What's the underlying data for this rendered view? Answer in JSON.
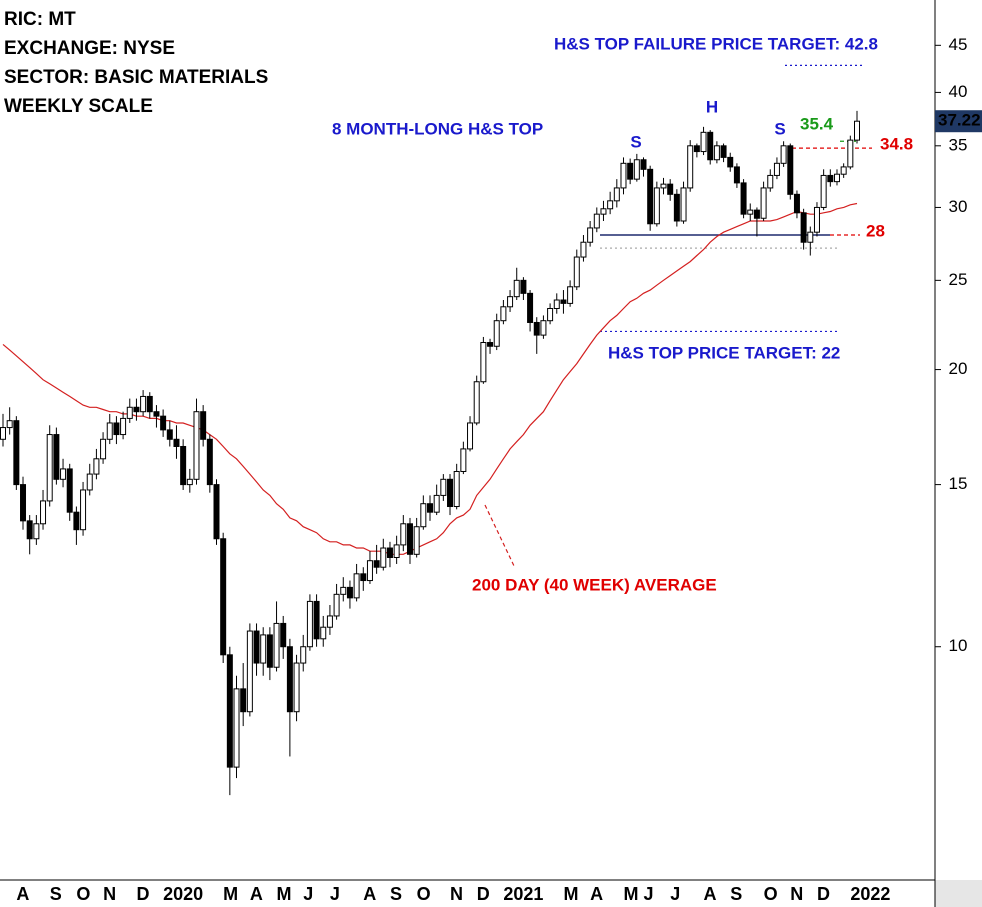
{
  "chart_data": {
    "type": "candlestick",
    "info": [
      "RIC: MT",
      "EXCHANGE: NYSE",
      "SECTOR: BASIC MATERIALS",
      "WEEKLY SCALE"
    ],
    "pattern_title": "8 MONTH-LONG H&S TOP",
    "pattern_labels": [
      "S",
      "H",
      "S"
    ],
    "ma_label": "200 DAY (40 WEEK) AVERAGE",
    "log_scale": true,
    "ylim": [
      5.58,
      50.4
    ],
    "yticks": [
      10,
      15,
      20,
      25,
      30,
      35,
      40,
      45
    ],
    "last_price": 37.22,
    "up_color": "#ffffff",
    "down_color": "#000000",
    "categories": [
      null,
      null,
      "A",
      null,
      null,
      null,
      null,
      "S",
      null,
      null,
      null,
      "O",
      null,
      null,
      null,
      "N",
      null,
      null,
      null,
      null,
      "D",
      null,
      null,
      null,
      "2020",
      null,
      null,
      null,
      null,
      null,
      null,
      null,
      null,
      "M",
      null,
      null,
      null,
      "A",
      null,
      null,
      null,
      "M",
      null,
      null,
      null,
      "J",
      null,
      null,
      null,
      "J",
      null,
      null,
      null,
      null,
      "A",
      null,
      null,
      null,
      "S",
      null,
      null,
      null,
      "O",
      null,
      null,
      null,
      null,
      "N",
      null,
      null,
      null,
      "D",
      null,
      null,
      null,
      "2021",
      null,
      null,
      null,
      null,
      null,
      null,
      null,
      null,
      "M",
      null,
      null,
      null,
      "A",
      null,
      null,
      null,
      null,
      "M",
      null,
      null,
      "J",
      null,
      null,
      null,
      "J",
      null,
      null,
      null,
      null,
      "A",
      null,
      null,
      null,
      "S",
      null,
      null,
      null,
      null,
      "O",
      null,
      null,
      null,
      "N",
      null,
      null,
      null,
      "D",
      null,
      null,
      null,
      null,
      "2022",
      null
    ],
    "ohlc": [
      [
        16.8,
        17.9,
        16.5,
        17.3
      ],
      [
        17.3,
        18.2,
        17.0,
        17.6
      ],
      [
        17.6,
        17.8,
        14.8,
        15.0
      ],
      [
        15.0,
        15.3,
        13.4,
        13.7
      ],
      [
        13.7,
        13.9,
        12.6,
        13.1
      ],
      [
        13.1,
        13.9,
        12.9,
        13.6
      ],
      [
        13.6,
        14.8,
        13.4,
        14.4
      ],
      [
        14.4,
        17.4,
        14.2,
        17.0
      ],
      [
        17.0,
        17.3,
        15.0,
        15.2
      ],
      [
        15.2,
        16.0,
        14.9,
        15.6
      ],
      [
        15.6,
        15.8,
        13.7,
        14.0
      ],
      [
        14.0,
        14.2,
        12.9,
        13.4
      ],
      [
        13.4,
        15.1,
        13.2,
        14.8
      ],
      [
        14.8,
        15.8,
        14.6,
        15.4
      ],
      [
        15.4,
        16.4,
        15.2,
        16.0
      ],
      [
        16.0,
        17.1,
        15.8,
        16.8
      ],
      [
        16.8,
        17.9,
        16.6,
        17.5
      ],
      [
        17.5,
        17.8,
        16.6,
        17.0
      ],
      [
        17.0,
        18.0,
        16.8,
        17.7
      ],
      [
        17.7,
        18.6,
        17.5,
        18.2
      ],
      [
        18.2,
        18.6,
        17.6,
        18.0
      ],
      [
        18.0,
        19.0,
        17.8,
        18.7
      ],
      [
        18.7,
        18.9,
        17.7,
        18.0
      ],
      [
        18.0,
        18.3,
        17.3,
        17.8
      ],
      [
        17.8,
        18.1,
        16.9,
        17.2
      ],
      [
        17.2,
        17.6,
        16.5,
        16.8
      ],
      [
        16.8,
        17.4,
        16.0,
        16.5
      ],
      [
        16.5,
        16.8,
        14.8,
        15.0
      ],
      [
        15.0,
        15.6,
        14.7,
        15.2
      ],
      [
        15.2,
        18.6,
        15.0,
        18.0
      ],
      [
        18.0,
        18.3,
        16.5,
        16.8
      ],
      [
        16.8,
        17.0,
        14.7,
        15.0
      ],
      [
        15.0,
        15.2,
        12.9,
        13.1
      ],
      [
        13.1,
        13.3,
        9.6,
        9.8
      ],
      [
        9.8,
        10.0,
        6.9,
        7.4
      ],
      [
        7.4,
        9.3,
        7.2,
        9.0
      ],
      [
        9.0,
        9.6,
        8.2,
        8.5
      ],
      [
        8.5,
        10.6,
        8.4,
        10.4
      ],
      [
        10.4,
        10.6,
        9.3,
        9.6
      ],
      [
        9.6,
        10.5,
        9.3,
        10.3
      ],
      [
        10.3,
        10.5,
        9.2,
        9.5
      ],
      [
        9.5,
        11.2,
        9.4,
        10.6
      ],
      [
        10.6,
        10.8,
        9.7,
        10.0
      ],
      [
        10.0,
        10.2,
        7.6,
        8.5
      ],
      [
        8.5,
        9.8,
        8.3,
        9.6
      ],
      [
        9.6,
        10.3,
        9.4,
        10.0
      ],
      [
        10.0,
        11.4,
        9.9,
        11.2
      ],
      [
        11.2,
        11.4,
        10.0,
        10.2
      ],
      [
        10.2,
        10.8,
        10.0,
        10.5
      ],
      [
        10.5,
        11.1,
        10.3,
        10.8
      ],
      [
        10.8,
        11.7,
        10.7,
        11.4
      ],
      [
        11.4,
        11.9,
        11.2,
        11.6
      ],
      [
        11.6,
        11.8,
        11.0,
        11.3
      ],
      [
        11.3,
        12.3,
        11.2,
        12.0
      ],
      [
        12.0,
        12.2,
        11.5,
        11.8
      ],
      [
        11.8,
        12.7,
        11.7,
        12.4
      ],
      [
        12.4,
        12.9,
        12.0,
        12.2
      ],
      [
        12.2,
        13.1,
        12.1,
        12.8
      ],
      [
        12.8,
        13.0,
        12.2,
        12.5
      ],
      [
        12.5,
        13.2,
        12.3,
        12.9
      ],
      [
        12.9,
        13.9,
        12.7,
        13.6
      ],
      [
        13.6,
        13.8,
        12.3,
        12.6
      ],
      [
        12.6,
        13.8,
        12.5,
        13.5
      ],
      [
        13.5,
        14.6,
        13.4,
        14.3
      ],
      [
        14.3,
        14.6,
        13.7,
        14.0
      ],
      [
        14.0,
        15.0,
        13.9,
        14.6
      ],
      [
        14.6,
        15.4,
        14.4,
        15.2
      ],
      [
        15.2,
        15.4,
        13.9,
        14.2
      ],
      [
        14.2,
        15.8,
        14.1,
        15.5
      ],
      [
        15.5,
        16.7,
        15.4,
        16.4
      ],
      [
        16.4,
        17.8,
        16.3,
        17.5
      ],
      [
        17.5,
        19.7,
        17.4,
        19.4
      ],
      [
        19.4,
        21.7,
        19.3,
        21.4
      ],
      [
        21.4,
        21.6,
        20.8,
        21.2
      ],
      [
        21.2,
        23.0,
        21.0,
        22.6
      ],
      [
        22.6,
        23.8,
        22.4,
        23.4
      ],
      [
        23.4,
        24.4,
        23.1,
        24.0
      ],
      [
        24.0,
        25.8,
        23.8,
        25.0
      ],
      [
        25.0,
        25.2,
        23.8,
        24.2
      ],
      [
        24.2,
        24.4,
        22.0,
        22.5
      ],
      [
        22.5,
        22.8,
        20.8,
        21.8
      ],
      [
        21.8,
        22.9,
        21.6,
        22.6
      ],
      [
        22.6,
        23.6,
        22.4,
        23.3
      ],
      [
        23.3,
        24.2,
        23.0,
        23.8
      ],
      [
        23.8,
        24.4,
        23.0,
        23.6
      ],
      [
        23.6,
        25.0,
        23.4,
        24.6
      ],
      [
        24.6,
        27.0,
        24.4,
        26.5
      ],
      [
        26.5,
        28.0,
        26.2,
        27.5
      ],
      [
        27.5,
        29.0,
        27.2,
        28.5
      ],
      [
        28.5,
        30.0,
        28.2,
        29.5
      ],
      [
        29.5,
        30.5,
        29.0,
        29.9
      ],
      [
        29.9,
        31.2,
        29.5,
        30.5
      ],
      [
        30.5,
        32.2,
        30.0,
        31.5
      ],
      [
        31.5,
        34.0,
        31.0,
        33.5
      ],
      [
        33.5,
        33.9,
        31.8,
        32.2
      ],
      [
        32.2,
        34.3,
        32.0,
        33.8
      ],
      [
        33.8,
        34.0,
        32.4,
        33.0
      ],
      [
        33.0,
        33.3,
        28.3,
        28.8
      ],
      [
        28.8,
        32.0,
        28.6,
        31.5
      ],
      [
        31.5,
        32.3,
        31.0,
        31.8
      ],
      [
        31.8,
        32.2,
        30.5,
        31.0
      ],
      [
        31.0,
        31.4,
        28.6,
        29.0
      ],
      [
        29.0,
        32.0,
        28.8,
        31.5
      ],
      [
        31.5,
        35.5,
        31.2,
        35.0
      ],
      [
        35.0,
        35.2,
        34.0,
        34.5
      ],
      [
        34.5,
        36.7,
        34.2,
        36.2
      ],
      [
        36.2,
        36.4,
        33.4,
        33.8
      ],
      [
        33.8,
        35.4,
        33.5,
        35.0
      ],
      [
        35.0,
        35.2,
        33.6,
        34.0
      ],
      [
        34.0,
        34.4,
        32.8,
        33.2
      ],
      [
        33.2,
        33.5,
        31.5,
        31.9
      ],
      [
        31.9,
        32.2,
        29.2,
        29.5
      ],
      [
        29.5,
        30.3,
        29.0,
        29.8
      ],
      [
        29.8,
        30.0,
        27.9,
        29.2
      ],
      [
        29.2,
        32.0,
        29.0,
        31.5
      ],
      [
        31.5,
        33.0,
        31.2,
        32.5
      ],
      [
        32.5,
        34.0,
        32.2,
        33.5
      ],
      [
        33.5,
        35.4,
        33.2,
        35.0
      ],
      [
        35.0,
        35.2,
        30.6,
        31.0
      ],
      [
        31.0,
        31.3,
        29.2,
        29.6
      ],
      [
        29.6,
        29.9,
        27.0,
        27.5
      ],
      [
        27.5,
        28.6,
        26.6,
        28.2
      ],
      [
        28.2,
        30.4,
        27.9,
        30.0
      ],
      [
        30.0,
        33.0,
        29.8,
        32.5
      ],
      [
        32.5,
        33.0,
        31.6,
        32.0
      ],
      [
        32.0,
        33.0,
        31.7,
        32.6
      ],
      [
        32.6,
        33.5,
        32.3,
        33.2
      ],
      [
        33.2,
        35.9,
        33.0,
        35.5
      ],
      [
        35.5,
        38.2,
        35.2,
        37.22
      ]
    ],
    "moving_average": {
      "color": "#d42020",
      "values": [
        21.3,
        21.0,
        20.7,
        20.4,
        20.1,
        19.8,
        19.5,
        19.3,
        19.1,
        18.9,
        18.7,
        18.5,
        18.3,
        18.2,
        18.2,
        18.1,
        18.0,
        18.0,
        17.9,
        17.9,
        17.8,
        17.8,
        17.7,
        17.7,
        17.6,
        17.6,
        17.5,
        17.5,
        17.4,
        17.3,
        17.2,
        17.0,
        16.8,
        16.5,
        16.2,
        16.0,
        15.7,
        15.4,
        15.1,
        14.8,
        14.6,
        14.3,
        14.1,
        13.8,
        13.7,
        13.5,
        13.4,
        13.3,
        13.1,
        13.0,
        13.0,
        12.9,
        12.9,
        12.8,
        12.8,
        12.7,
        12.7,
        12.7,
        12.6,
        12.6,
        12.6,
        12.7,
        12.8,
        12.9,
        13.0,
        13.1,
        13.3,
        13.6,
        13.8,
        13.9,
        14.1,
        14.6,
        14.9,
        15.2,
        15.6,
        16.0,
        16.4,
        16.7,
        17.0,
        17.4,
        17.7,
        18.0,
        18.5,
        19.0,
        19.5,
        19.9,
        20.3,
        20.8,
        21.3,
        21.8,
        22.2,
        22.6,
        22.9,
        23.3,
        23.7,
        23.9,
        24.2,
        24.4,
        24.7,
        25.0,
        25.3,
        25.6,
        25.9,
        26.2,
        26.6,
        27.0,
        27.5,
        27.9,
        28.2,
        28.4,
        28.6,
        28.8,
        29.0,
        29.0,
        29.0,
        29.0,
        29.1,
        29.3,
        29.5,
        29.7,
        29.6,
        29.5,
        29.5,
        29.6,
        29.7,
        29.9,
        30.0,
        30.2,
        30.3
      ]
    },
    "levels": [
      {
        "text": "H&S TOP FAILURE PRICE TARGET: 42.8",
        "value": 42.8,
        "color": "#1a1acc",
        "style": "dotted"
      },
      {
        "text": "H&S TOP PRICE TARGET: 22",
        "value": 22,
        "color": "#1a1acc",
        "style": "dotted"
      },
      {
        "text": "34.8",
        "value": 34.8,
        "color": "#e00000",
        "style": "dashed"
      },
      {
        "text": "28",
        "value": 28,
        "color": "#e00000",
        "style": "dashed"
      },
      {
        "text": "35.4",
        "value": 35.4,
        "color": "#1a9a1a",
        "style": "dashed"
      },
      {
        "value": 28,
        "color": "#1f2a6e",
        "style": "solid"
      },
      {
        "value": 27.1,
        "color": "#aaaaaa",
        "style": "dotted"
      }
    ]
  }
}
